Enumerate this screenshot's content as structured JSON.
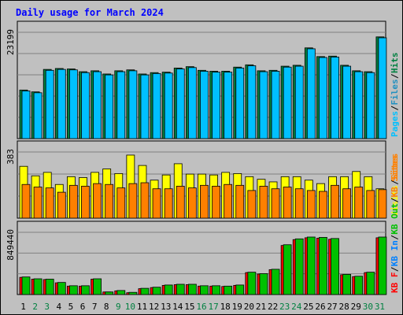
{
  "chart_data": [
    {
      "type": "bar",
      "title": "Daily usage for March 2024",
      "max_label": "23199",
      "ylim": [
        0,
        23199
      ],
      "legend": "right",
      "legend_items": [
        {
          "text": "Pages",
          "color": "#00c0ff"
        },
        {
          "text": "Files",
          "color": "#2090c0"
        },
        {
          "text": "Hits",
          "color": "#008040"
        }
      ],
      "categories": [
        "1",
        "2",
        "3",
        "4",
        "5",
        "6",
        "7",
        "8",
        "9",
        "10",
        "11",
        "12",
        "13",
        "14",
        "15",
        "16",
        "17",
        "18",
        "19",
        "20",
        "21",
        "22",
        "23",
        "24",
        "25",
        "26",
        "27",
        "28",
        "29",
        "30",
        "31"
      ],
      "series": [
        {
          "name": "Hits",
          "color": "#008040",
          "values": [
            10600,
            10200,
            15100,
            15300,
            15200,
            14600,
            14800,
            14100,
            14800,
            15000,
            14100,
            14400,
            14500,
            15400,
            15700,
            14900,
            14700,
            14700,
            15600,
            16100,
            14800,
            14900,
            15800,
            16000,
            19800,
            17900,
            18000,
            16000,
            14800,
            14600,
            22200
          ]
        },
        {
          "name": "Files",
          "color": "#00c0ff",
          "values": [
            10400,
            10000,
            14900,
            15100,
            15000,
            14400,
            14600,
            13900,
            14600,
            14800,
            13900,
            14200,
            14300,
            15200,
            15500,
            14700,
            14500,
            14500,
            15400,
            15900,
            14600,
            14700,
            15600,
            15800,
            19600,
            17700,
            17800,
            15800,
            14600,
            14400,
            22000
          ]
        }
      ]
    },
    {
      "type": "bar",
      "max_label": "383",
      "ylim": [
        0,
        383
      ],
      "legend": "right",
      "legend_items": [
        {
          "text": "Visits",
          "color": "#ffff00"
        },
        {
          "text": "Sites",
          "color": "#ff8000"
        }
      ],
      "categories": [
        "1",
        "2",
        "3",
        "4",
        "5",
        "6",
        "7",
        "8",
        "9",
        "10",
        "11",
        "12",
        "13",
        "14",
        "15",
        "16",
        "17",
        "18",
        "19",
        "20",
        "21",
        "22",
        "23",
        "24",
        "25",
        "26",
        "27",
        "28",
        "29",
        "30",
        "31"
      ],
      "series": [
        {
          "name": "Visits",
          "color": "#ffff00",
          "values": [
            300,
            245,
            265,
            195,
            240,
            235,
            265,
            285,
            258,
            365,
            305,
            220,
            250,
            315,
            255,
            255,
            250,
            265,
            258,
            240,
            225,
            210,
            240,
            240,
            220,
            200,
            240,
            240,
            270,
            240,
            170
          ]
        },
        {
          "name": "Sites",
          "color": "#ff8000",
          "values": [
            195,
            180,
            175,
            150,
            190,
            185,
            200,
            195,
            175,
            200,
            205,
            170,
            170,
            185,
            175,
            190,
            185,
            195,
            190,
            160,
            185,
            170,
            180,
            170,
            160,
            155,
            190,
            170,
            180,
            160,
            165
          ]
        }
      ]
    },
    {
      "type": "bar",
      "max_label": "849440",
      "ylim": [
        0,
        849440
      ],
      "legend": "right",
      "legend_items": [
        {
          "text": "KB F",
          "color": "#ff0000"
        },
        {
          "text": "KB In",
          "color": "#0080ff"
        },
        {
          "text": "KB Out",
          "color": "#00c000"
        },
        {
          "text": "KB Sites",
          "color": "#ff8000"
        }
      ],
      "categories": [
        "1",
        "2",
        "3",
        "4",
        "5",
        "6",
        "7",
        "8",
        "9",
        "10",
        "11",
        "12",
        "13",
        "14",
        "15",
        "16",
        "17",
        "18",
        "19",
        "20",
        "21",
        "22",
        "23",
        "24",
        "25",
        "26",
        "27",
        "28",
        "29",
        "30",
        "31"
      ],
      "series": [
        {
          "name": "KB F",
          "color": "#ff0000",
          "values": [
            235000,
            210000,
            205000,
            160000,
            115000,
            115000,
            210000,
            35000,
            50000,
            25000,
            80000,
            95000,
            125000,
            135000,
            135000,
            115000,
            115000,
            110000,
            125000,
            300000,
            280000,
            340000,
            670000,
            750000,
            775000,
            770000,
            755000,
            270000,
            245000,
            300000,
            775000
          ]
        },
        {
          "name": "KB Out",
          "color": "#00c000",
          "values": [
            240000,
            215000,
            210000,
            165000,
            120000,
            120000,
            215000,
            35000,
            55000,
            30000,
            85000,
            100000,
            130000,
            140000,
            140000,
            120000,
            120000,
            115000,
            130000,
            305000,
            285000,
            345000,
            680000,
            760000,
            785000,
            780000,
            765000,
            275000,
            250000,
            305000,
            785000
          ]
        }
      ]
    }
  ],
  "days": [
    {
      "label": "1",
      "weekend": false
    },
    {
      "label": "2",
      "weekend": true
    },
    {
      "label": "3",
      "weekend": true
    },
    {
      "label": "4",
      "weekend": false
    },
    {
      "label": "5",
      "weekend": false
    },
    {
      "label": "6",
      "weekend": false
    },
    {
      "label": "7",
      "weekend": false
    },
    {
      "label": "8",
      "weekend": false
    },
    {
      "label": "9",
      "weekend": true
    },
    {
      "label": "10",
      "weekend": true
    },
    {
      "label": "11",
      "weekend": false
    },
    {
      "label": "12",
      "weekend": false
    },
    {
      "label": "13",
      "weekend": false
    },
    {
      "label": "14",
      "weekend": false
    },
    {
      "label": "15",
      "weekend": false
    },
    {
      "label": "16",
      "weekend": true
    },
    {
      "label": "17",
      "weekend": true
    },
    {
      "label": "18",
      "weekend": false
    },
    {
      "label": "19",
      "weekend": false
    },
    {
      "label": "20",
      "weekend": false
    },
    {
      "label": "21",
      "weekend": false
    },
    {
      "label": "22",
      "weekend": false
    },
    {
      "label": "23",
      "weekend": true
    },
    {
      "label": "24",
      "weekend": true
    },
    {
      "label": "25",
      "weekend": false
    },
    {
      "label": "26",
      "weekend": false
    },
    {
      "label": "27",
      "weekend": false
    },
    {
      "label": "28",
      "weekend": false
    },
    {
      "label": "29",
      "weekend": false
    },
    {
      "label": "30",
      "weekend": true
    },
    {
      "label": "31",
      "weekend": true
    }
  ],
  "colors": {
    "weekday_label": "#000000",
    "weekend_label": "#008040",
    "title": "#0000ff",
    "frame": "#c0c0c0",
    "plot_bg": "#c0c0c0"
  }
}
